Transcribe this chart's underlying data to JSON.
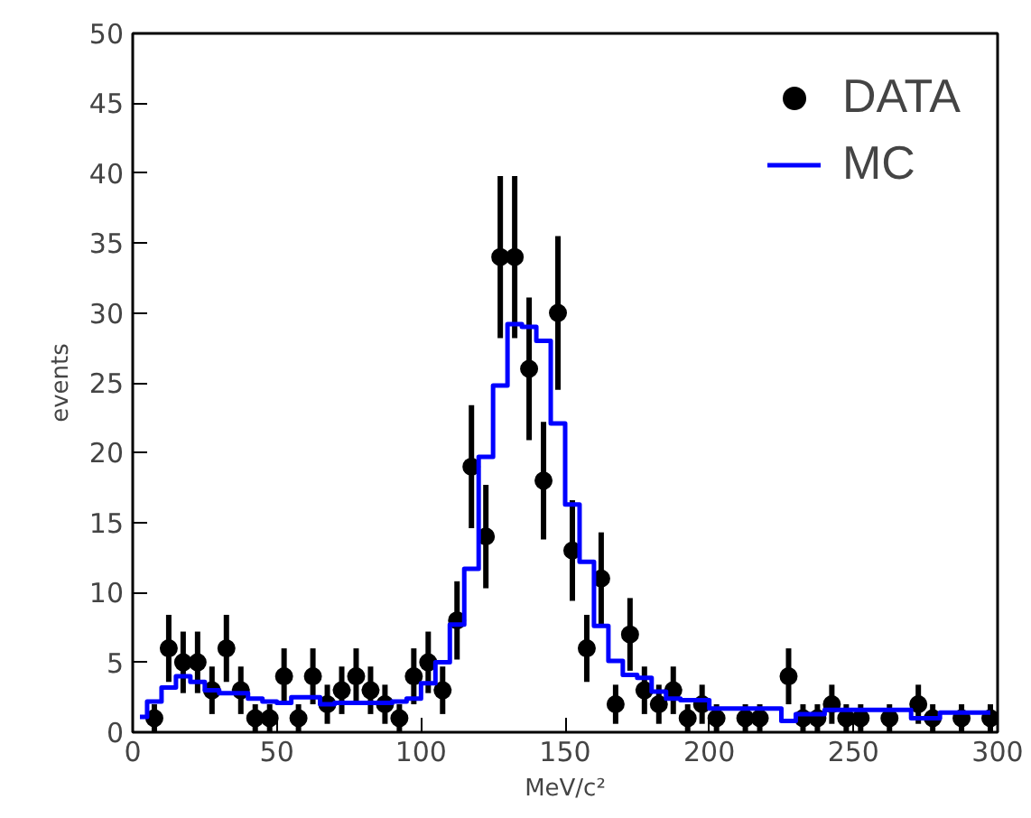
{
  "chart_data": {
    "type": "scatter",
    "xlabel": "MeV/c²",
    "ylabel": "events",
    "xlim": [
      0,
      300
    ],
    "xticks": [
      0,
      50,
      100,
      150,
      200,
      250,
      300
    ],
    "ylim": [
      0,
      50
    ],
    "yticks": [
      0,
      5,
      10,
      15,
      20,
      25,
      30,
      35,
      40,
      45,
      50
    ],
    "grid": false,
    "legend": "top right",
    "x": [
      2.5,
      7.5,
      12.5,
      17.5,
      22.5,
      27.5,
      32.5,
      37.5,
      42.5,
      47.5,
      52.5,
      57.5,
      62.5,
      67.5,
      72.5,
      77.5,
      82.5,
      87.5,
      92.5,
      97.5,
      102.5,
      107.5,
      112.5,
      117.5,
      122.5,
      127.5,
      132.5,
      137.5,
      142.5,
      147.5,
      152.5,
      157.5,
      162.5,
      167.5,
      172.5,
      177.5,
      182.5,
      187.5,
      192.5,
      197.5,
      202.5,
      207.5,
      212.5,
      217.5,
      222.5,
      227.5,
      232.5,
      237.5,
      242.5,
      247.5,
      252.5,
      257.5,
      262.5,
      267.5,
      272.5,
      277.5,
      282.5,
      287.5,
      292.5,
      297.5
    ],
    "series": [
      {
        "name": "DATA",
        "marker": "circle",
        "color": "#000000",
        "values": [
          null,
          1,
          6,
          5,
          5,
          3,
          6,
          3,
          1,
          1,
          4,
          1,
          4,
          2,
          3,
          4,
          3,
          2,
          1,
          4,
          5,
          3,
          8,
          19,
          14,
          34,
          34,
          26,
          18,
          30,
          13,
          6,
          11,
          2,
          7,
          3,
          2,
          3,
          1,
          2,
          1,
          null,
          1,
          1,
          null,
          4,
          1,
          1,
          2,
          1,
          1,
          null,
          1,
          null,
          2,
          1,
          null,
          1,
          null,
          1
        ],
        "errors": [
          null,
          1,
          2.4,
          2.2,
          2.2,
          1.7,
          2.4,
          1.7,
          1,
          1,
          2,
          1,
          2,
          1.4,
          1.7,
          2,
          1.7,
          1.4,
          1,
          2,
          2.2,
          1.7,
          2.8,
          4.4,
          3.7,
          5.8,
          5.8,
          5.1,
          4.2,
          5.5,
          3.6,
          2.4,
          3.3,
          1.4,
          2.6,
          1.7,
          1.4,
          1.7,
          1,
          1.4,
          1,
          null,
          1,
          1,
          null,
          2,
          1,
          1,
          1.4,
          1,
          1,
          null,
          1,
          null,
          1.4,
          1,
          null,
          1,
          null,
          1
        ]
      },
      {
        "name": "MC",
        "type": "step",
        "color": "#0000ff",
        "values": [
          1.1,
          2.2,
          3.2,
          4.0,
          3.6,
          3.0,
          2.8,
          2.8,
          2.4,
          2.2,
          2.1,
          2.5,
          2.5,
          2.0,
          2.1,
          2.1,
          2.1,
          2.1,
          2.2,
          2.4,
          3.5,
          5.0,
          7.7,
          11.7,
          19.7,
          24.8,
          29.2,
          29.0,
          28.0,
          22.1,
          16.3,
          12.2,
          7.6,
          5.1,
          4.1,
          3.9,
          2.9,
          2.4,
          2.3,
          2.3,
          1.7,
          1.7,
          1.7,
          1.7,
          1.7,
          0.8,
          1.3,
          1.3,
          1.6,
          1.6,
          1.6,
          1.6,
          1.6,
          1.6,
          1.0,
          1.0,
          1.4,
          1.4,
          1.4,
          1.4
        ]
      }
    ]
  }
}
